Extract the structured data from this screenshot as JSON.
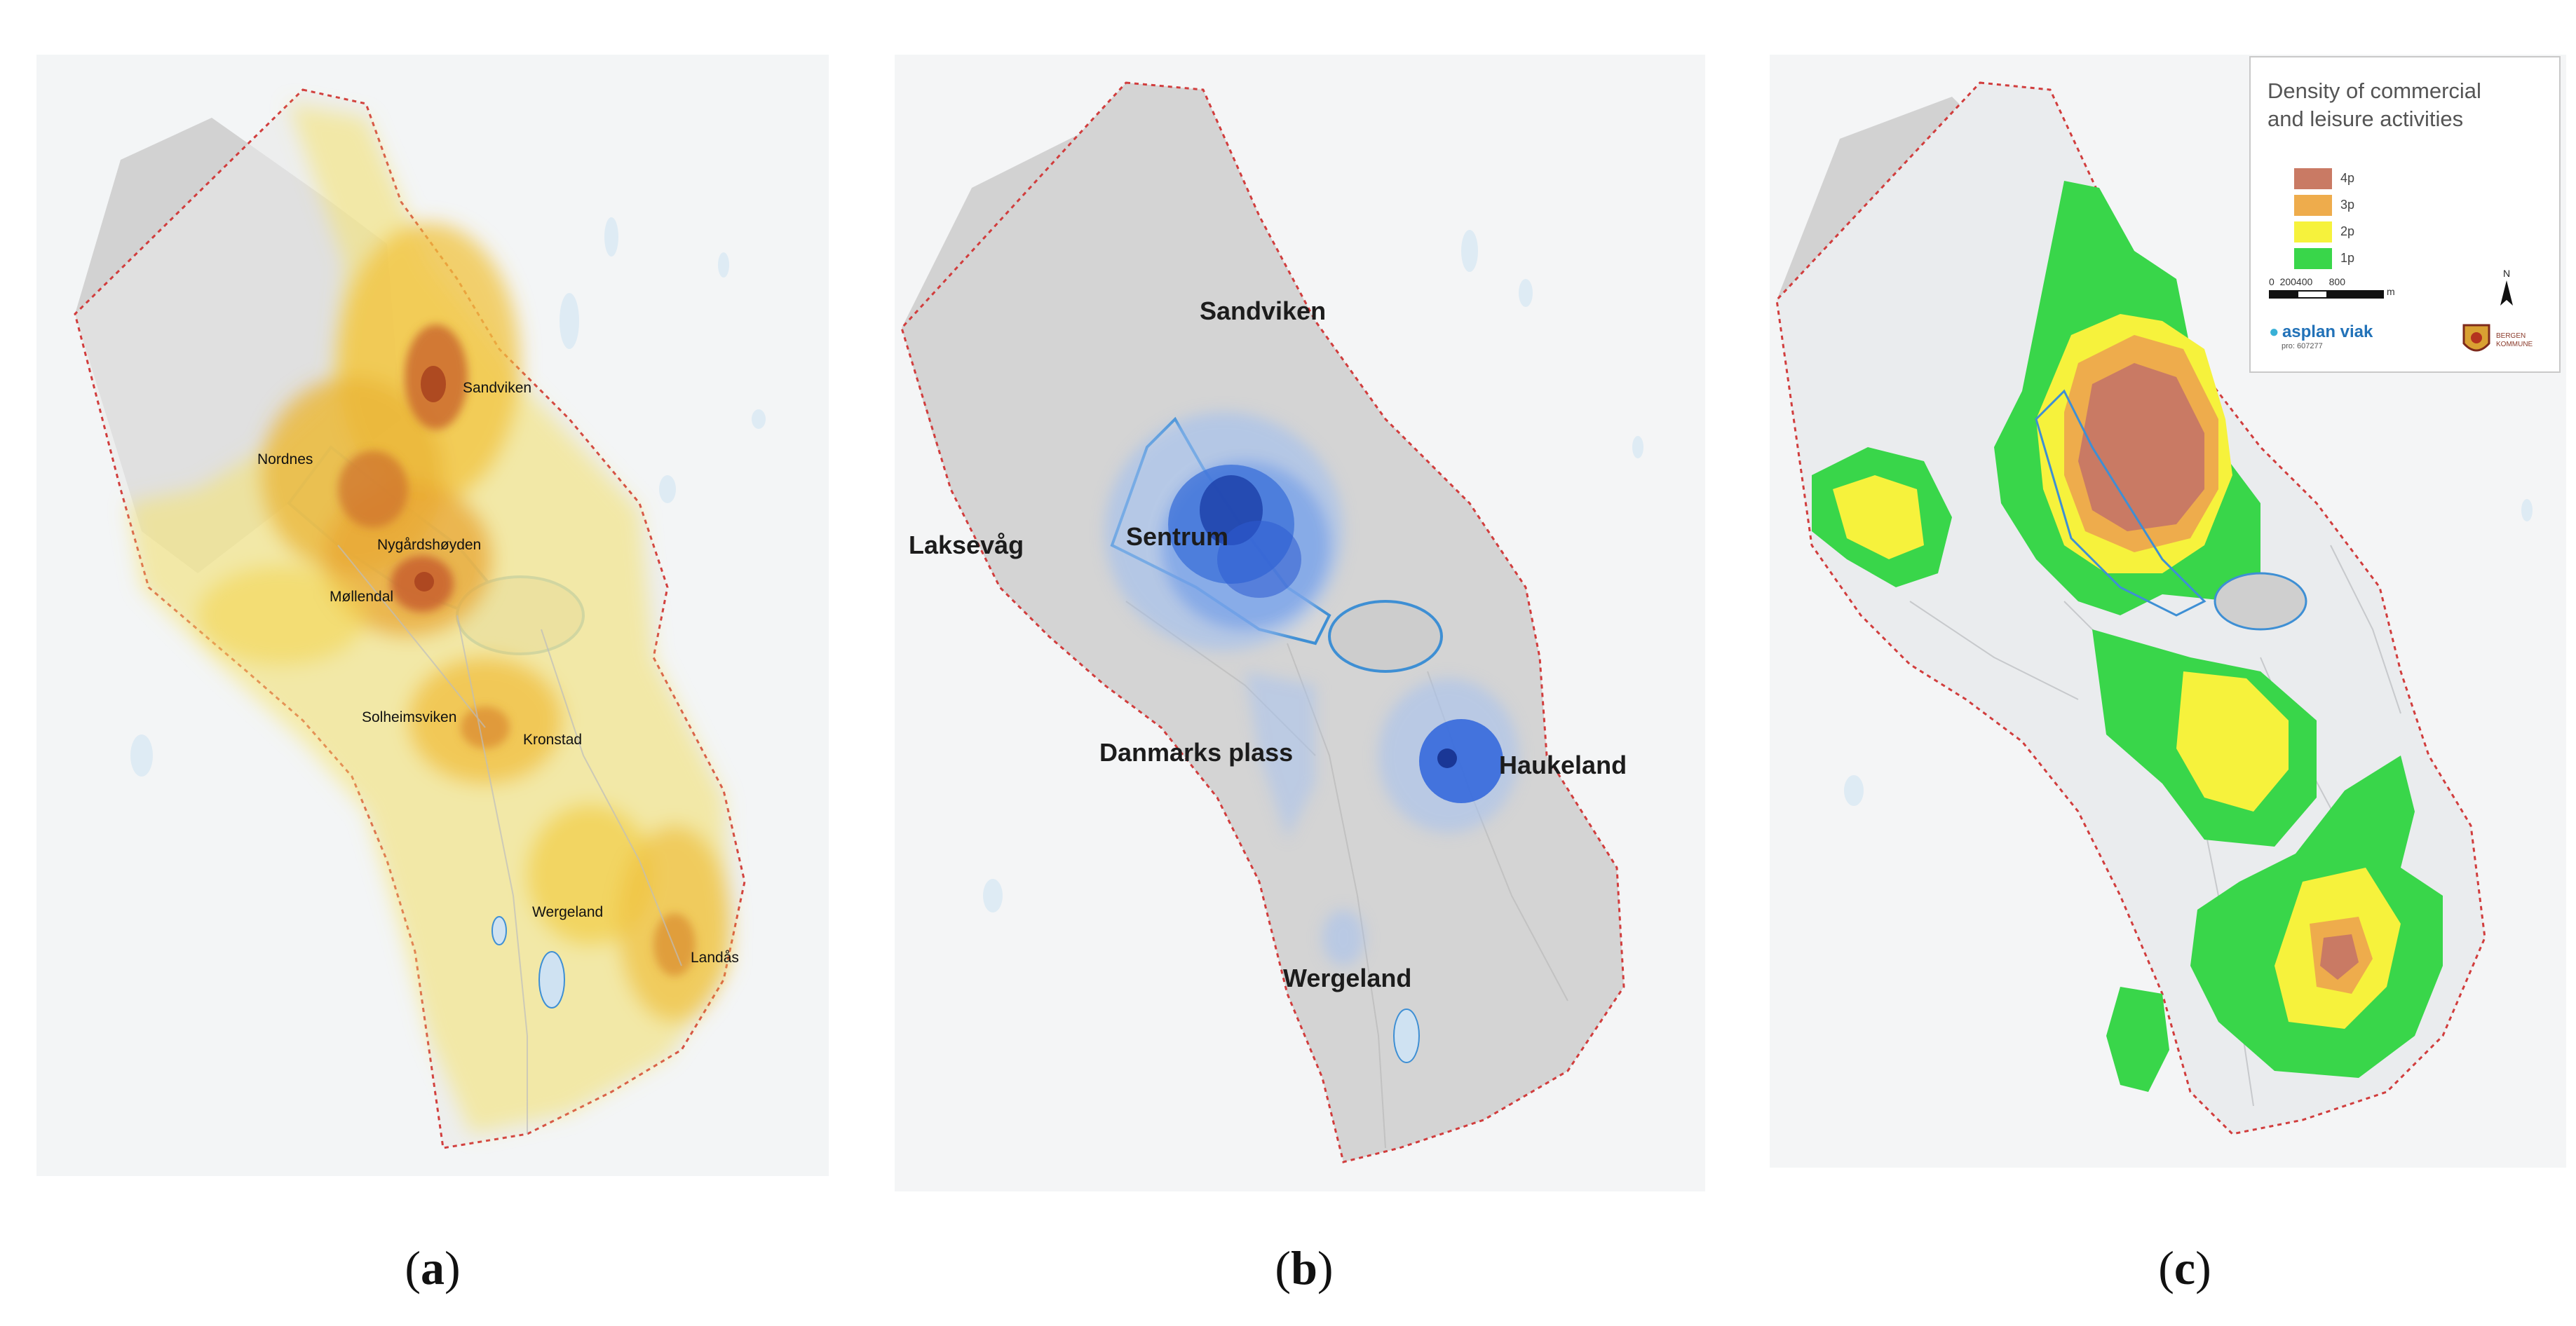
{
  "panels": [
    {
      "id": "a",
      "caption": "a",
      "labels": [
        "Sandviken",
        "Nordnes",
        "Nygårdshøyden",
        "Møllendal",
        "Solheimsviken",
        "Kronstad",
        "Wergeland",
        "Landås"
      ]
    },
    {
      "id": "b",
      "caption": "b",
      "labels": [
        "Sandviken",
        "Laksevåg",
        "Sentrum",
        "Danmarks plass",
        "Haukeland",
        "Wergeland"
      ]
    },
    {
      "id": "c",
      "caption": "c",
      "legend": {
        "title_line1": "Density of commercial",
        "title_line2": "and leisure activities",
        "items": [
          {
            "label": "4p",
            "color": "#c97a64"
          },
          {
            "label": "3p",
            "color": "#eeac4c"
          },
          {
            "label": "2p",
            "color": "#f6f23c"
          },
          {
            "label": "1p",
            "color": "#39d64a"
          }
        ],
        "scale_numbers": "0  200400      800",
        "scale_unit": "m",
        "north": "N",
        "logo_left": "asplan viak",
        "logo_left_sub": "pro: 607277",
        "logo_right": "BERGEN KOMMUNE"
      }
    }
  ],
  "colors": {
    "water": "#cfe2f2",
    "land_gray": "#d2d2d2",
    "boundary": "#d13d3d",
    "fjord_outline": "#3e8fd4"
  }
}
